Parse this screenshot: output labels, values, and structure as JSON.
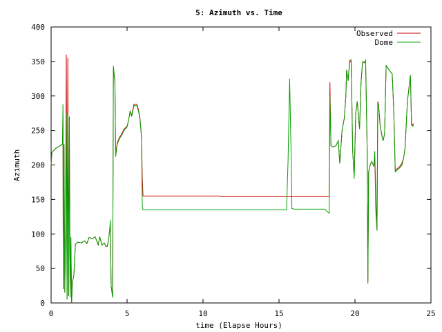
{
  "chart_data": {
    "type": "line",
    "title": "5: Azimuth vs. Time",
    "xlabel": "time (Elapse Hours)",
    "ylabel": "Azimuth",
    "xlim": [
      0,
      25
    ],
    "ylim": [
      0,
      400
    ],
    "xticks": [
      0,
      5,
      10,
      15,
      20,
      25
    ],
    "yticks": [
      0,
      50,
      100,
      150,
      200,
      250,
      300,
      350,
      400
    ],
    "grid": false,
    "legend_position": "top-right",
    "series": [
      {
        "name": "Observed",
        "color": "#cc0000",
        "points": [
          [
            0.0,
            200
          ],
          [
            0.05,
            218
          ],
          [
            0.3,
            224
          ],
          [
            0.6,
            228
          ],
          [
            0.75,
            230
          ],
          [
            0.78,
            272
          ],
          [
            0.8,
            20
          ],
          [
            0.85,
            230
          ],
          [
            0.9,
            15
          ],
          [
            0.95,
            100
          ],
          [
            1.0,
            360
          ],
          [
            1.05,
            5
          ],
          [
            1.1,
            355
          ],
          [
            1.15,
            10
          ],
          [
            1.2,
            270
          ],
          [
            1.25,
            8
          ],
          [
            1.3,
            95
          ],
          [
            1.35,
            0
          ],
          [
            1.4,
            30
          ],
          [
            1.5,
            40
          ],
          [
            1.6,
            85
          ],
          [
            1.75,
            88
          ],
          [
            2.0,
            87
          ],
          [
            2.2,
            90
          ],
          [
            2.35,
            86
          ],
          [
            2.5,
            95
          ],
          [
            2.7,
            93
          ],
          [
            2.9,
            96
          ],
          [
            3.1,
            84
          ],
          [
            3.2,
            96
          ],
          [
            3.35,
            84
          ],
          [
            3.5,
            87
          ],
          [
            3.6,
            82
          ],
          [
            3.7,
            82
          ],
          [
            3.8,
            95
          ],
          [
            3.85,
            105
          ],
          [
            3.9,
            112
          ],
          [
            3.95,
            25
          ],
          [
            4.05,
            8
          ],
          [
            4.1,
            340
          ],
          [
            4.2,
            320
          ],
          [
            4.25,
            215
          ],
          [
            4.35,
            232
          ],
          [
            4.5,
            240
          ],
          [
            4.65,
            245
          ],
          [
            4.8,
            252
          ],
          [
            5.0,
            256
          ],
          [
            5.1,
            265
          ],
          [
            5.2,
            278
          ],
          [
            5.3,
            272
          ],
          [
            5.45,
            288
          ],
          [
            5.65,
            288
          ],
          [
            5.75,
            280
          ],
          [
            5.85,
            268
          ],
          [
            5.95,
            240
          ],
          [
            6.0,
            182
          ],
          [
            6.05,
            155
          ],
          [
            7.0,
            155
          ],
          [
            8.0,
            155
          ],
          [
            9.0,
            155
          ],
          [
            10.0,
            155
          ],
          [
            11.0,
            155
          ],
          [
            11.3,
            154
          ],
          [
            12.0,
            154
          ],
          [
            13.0,
            154
          ],
          [
            14.0,
            154
          ],
          [
            15.0,
            154
          ],
          [
            16.0,
            154
          ],
          [
            17.0,
            154
          ],
          [
            18.0,
            154
          ],
          [
            18.3,
            154
          ],
          [
            18.35,
            320
          ],
          [
            18.42,
            228
          ],
          [
            18.55,
            226
          ],
          [
            18.75,
            228
          ],
          [
            18.9,
            235
          ],
          [
            19.0,
            202
          ],
          [
            19.15,
            250
          ],
          [
            19.3,
            268
          ],
          [
            19.4,
            300
          ],
          [
            19.45,
            338
          ],
          [
            19.55,
            322
          ],
          [
            19.65,
            348
          ],
          [
            19.75,
            352
          ],
          [
            19.85,
            220
          ],
          [
            19.95,
            185
          ],
          [
            20.05,
            275
          ],
          [
            20.15,
            292
          ],
          [
            20.3,
            252
          ],
          [
            20.4,
            320
          ],
          [
            20.5,
            350
          ],
          [
            20.6,
            348
          ],
          [
            20.7,
            350
          ],
          [
            20.8,
            225
          ],
          [
            20.85,
            30
          ],
          [
            20.9,
            190
          ],
          [
            21.0,
            200
          ],
          [
            21.1,
            205
          ],
          [
            21.25,
            198
          ],
          [
            21.3,
            215
          ],
          [
            21.38,
            130
          ],
          [
            21.45,
            105
          ],
          [
            21.5,
            292
          ],
          [
            21.55,
            288
          ],
          [
            21.65,
            260
          ],
          [
            21.75,
            245
          ],
          [
            21.85,
            235
          ],
          [
            21.95,
            245
          ],
          [
            22.05,
            344
          ],
          [
            22.3,
            336
          ],
          [
            22.45,
            332
          ],
          [
            22.55,
            280
          ],
          [
            22.65,
            192
          ],
          [
            22.8,
            195
          ],
          [
            22.95,
            198
          ],
          [
            23.1,
            203
          ],
          [
            23.2,
            210
          ],
          [
            23.3,
            225
          ],
          [
            23.45,
            292
          ],
          [
            23.55,
            312
          ],
          [
            23.65,
            330
          ],
          [
            23.72,
            260
          ],
          [
            23.8,
            258
          ],
          [
            23.85,
            260
          ]
        ]
      },
      {
        "name": "Dome",
        "color": "#00a000",
        "points": [
          [
            0.0,
            200
          ],
          [
            0.05,
            218
          ],
          [
            0.3,
            224
          ],
          [
            0.6,
            228
          ],
          [
            0.75,
            230
          ],
          [
            0.78,
            288
          ],
          [
            0.8,
            20
          ],
          [
            0.85,
            230
          ],
          [
            0.9,
            15
          ],
          [
            0.95,
            100
          ],
          [
            1.0,
            275
          ],
          [
            1.05,
            5
          ],
          [
            1.1,
            272
          ],
          [
            1.15,
            10
          ],
          [
            1.2,
            268
          ],
          [
            1.25,
            8
          ],
          [
            1.3,
            95
          ],
          [
            1.35,
            0
          ],
          [
            1.4,
            30
          ],
          [
            1.5,
            40
          ],
          [
            1.6,
            85
          ],
          [
            1.75,
            88
          ],
          [
            2.0,
            87
          ],
          [
            2.2,
            90
          ],
          [
            2.35,
            86
          ],
          [
            2.5,
            95
          ],
          [
            2.7,
            93
          ],
          [
            2.9,
            96
          ],
          [
            3.1,
            84
          ],
          [
            3.2,
            96
          ],
          [
            3.35,
            84
          ],
          [
            3.5,
            87
          ],
          [
            3.6,
            82
          ],
          [
            3.7,
            82
          ],
          [
            3.8,
            95
          ],
          [
            3.85,
            105
          ],
          [
            3.9,
            120
          ],
          [
            3.95,
            25
          ],
          [
            4.05,
            8
          ],
          [
            4.1,
            344
          ],
          [
            4.2,
            320
          ],
          [
            4.25,
            212
          ],
          [
            4.35,
            230
          ],
          [
            4.5,
            238
          ],
          [
            4.65,
            243
          ],
          [
            4.8,
            250
          ],
          [
            5.0,
            255
          ],
          [
            5.1,
            265
          ],
          [
            5.2,
            278
          ],
          [
            5.3,
            270
          ],
          [
            5.45,
            286
          ],
          [
            5.65,
            286
          ],
          [
            5.75,
            278
          ],
          [
            5.85,
            266
          ],
          [
            5.95,
            240
          ],
          [
            6.0,
            140
          ],
          [
            6.05,
            135
          ],
          [
            7.0,
            135
          ],
          [
            8.0,
            135
          ],
          [
            9.0,
            135
          ],
          [
            10.0,
            135
          ],
          [
            11.0,
            135
          ],
          [
            12.0,
            135
          ],
          [
            13.0,
            135
          ],
          [
            14.0,
            135
          ],
          [
            15.0,
            135
          ],
          [
            15.5,
            135
          ],
          [
            15.6,
            210
          ],
          [
            15.7,
            325
          ],
          [
            15.8,
            210
          ],
          [
            15.85,
            137
          ],
          [
            16.0,
            136
          ],
          [
            17.0,
            136
          ],
          [
            18.0,
            136
          ],
          [
            18.3,
            130
          ],
          [
            18.35,
            300
          ],
          [
            18.42,
            228
          ],
          [
            18.55,
            226
          ],
          [
            18.75,
            228
          ],
          [
            18.9,
            235
          ],
          [
            19.0,
            202
          ],
          [
            19.15,
            250
          ],
          [
            19.3,
            268
          ],
          [
            19.4,
            300
          ],
          [
            19.45,
            338
          ],
          [
            19.55,
            322
          ],
          [
            19.65,
            352
          ],
          [
            19.75,
            352
          ],
          [
            19.85,
            220
          ],
          [
            19.95,
            180
          ],
          [
            20.05,
            275
          ],
          [
            20.15,
            292
          ],
          [
            20.3,
            252
          ],
          [
            20.4,
            320
          ],
          [
            20.5,
            350
          ],
          [
            20.6,
            348
          ],
          [
            20.7,
            352
          ],
          [
            20.8,
            225
          ],
          [
            20.85,
            28
          ],
          [
            20.9,
            190
          ],
          [
            21.0,
            200
          ],
          [
            21.1,
            205
          ],
          [
            21.25,
            198
          ],
          [
            21.3,
            220
          ],
          [
            21.38,
            150
          ],
          [
            21.45,
            105
          ],
          [
            21.5,
            290
          ],
          [
            21.55,
            286
          ],
          [
            21.65,
            258
          ],
          [
            21.75,
            245
          ],
          [
            21.85,
            235
          ],
          [
            21.95,
            245
          ],
          [
            22.05,
            344
          ],
          [
            22.3,
            336
          ],
          [
            22.45,
            332
          ],
          [
            22.55,
            280
          ],
          [
            22.65,
            190
          ],
          [
            22.8,
            193
          ],
          [
            22.95,
            196
          ],
          [
            23.1,
            200
          ],
          [
            23.2,
            210
          ],
          [
            23.3,
            225
          ],
          [
            23.45,
            292
          ],
          [
            23.55,
            310
          ],
          [
            23.65,
            330
          ],
          [
            23.72,
            258
          ],
          [
            23.8,
            256
          ],
          [
            23.85,
            258
          ]
        ]
      }
    ]
  }
}
